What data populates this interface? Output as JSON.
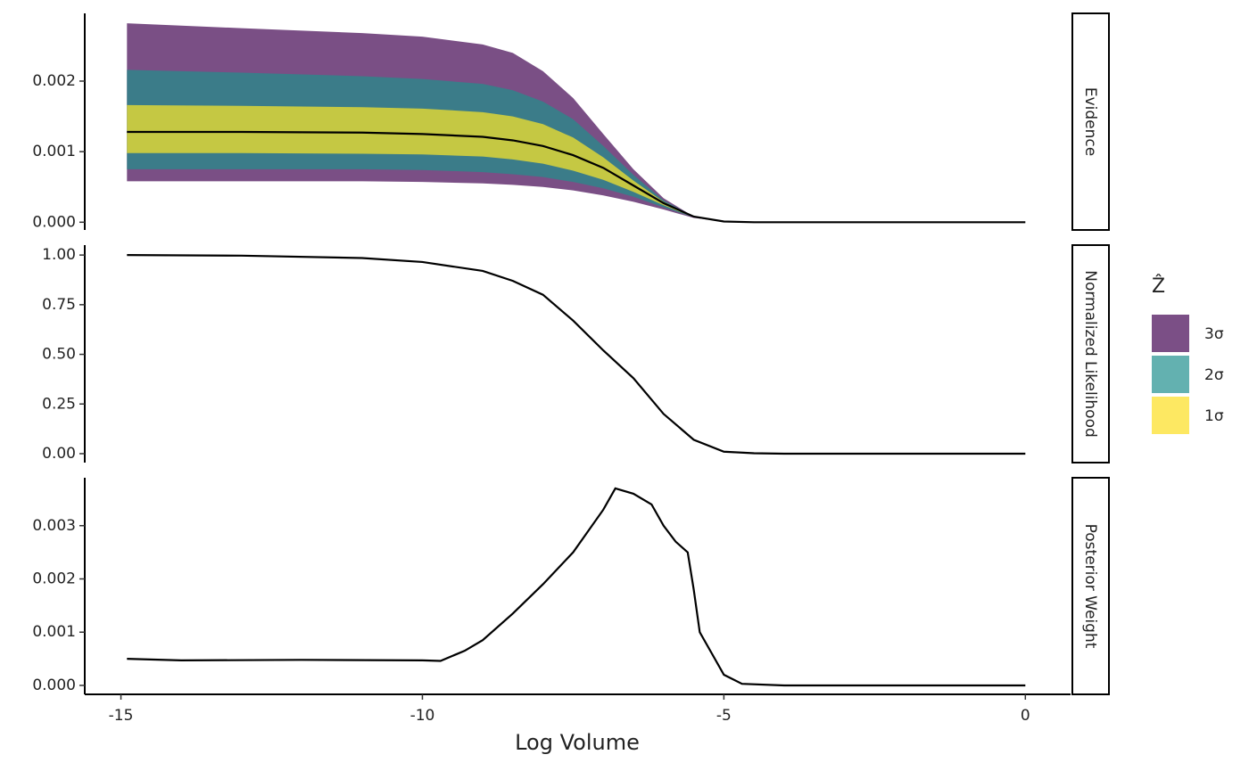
{
  "chart_data": [
    {
      "type": "band",
      "facet": "Evidence",
      "x": [
        -14.9,
        -13,
        -11,
        -10,
        -9,
        -8.5,
        -8,
        -7.5,
        -7,
        -6.5,
        -6,
        -5.5,
        -5,
        -4.5,
        -4,
        -2,
        0
      ],
      "xlim": [
        -15.6,
        0.75
      ],
      "ylim": [
        -0.00011,
        0.00296
      ],
      "yticks": [
        {
          "value": 0,
          "label": "0.000"
        },
        {
          "value": 0.001,
          "label": "0.001"
        },
        {
          "value": 0.002,
          "label": "0.002"
        }
      ],
      "legend_title": "Ẑ",
      "series": [
        {
          "name": "3σ",
          "color": "#7a4f85",
          "legend_color": "#7b4f86",
          "upper": [
            0.00282,
            0.00275,
            0.00268,
            0.00263,
            0.00252,
            0.0024,
            0.00214,
            0.00176,
            0.00125,
            0.00075,
            0.00034,
            8e-05,
            1e-05,
            0,
            0,
            0,
            0
          ],
          "lower": [
            0.00058,
            0.00058,
            0.00058,
            0.00057,
            0.00055,
            0.00053,
            0.0005,
            0.00045,
            0.00038,
            0.00029,
            0.00018,
            6e-05,
            1e-05,
            0,
            0,
            0,
            0
          ]
        },
        {
          "name": "2σ",
          "color": "#3b7c89",
          "legend_color": "#63b1b0",
          "upper": [
            0.00216,
            0.00212,
            0.00207,
            0.00203,
            0.00196,
            0.00187,
            0.00171,
            0.00146,
            0.00108,
            0.00067,
            0.00031,
            8e-05,
            1e-05,
            0,
            0,
            0,
            0
          ],
          "lower": [
            0.00075,
            0.00075,
            0.00075,
            0.00074,
            0.00071,
            0.00068,
            0.00064,
            0.00057,
            0.00048,
            0.00036,
            0.00021,
            7e-05,
            1e-05,
            0,
            0,
            0,
            0
          ]
        },
        {
          "name": "1σ",
          "color": "#c5c843",
          "legend_color": "#fde862",
          "upper": [
            0.00166,
            0.00165,
            0.00163,
            0.00161,
            0.00156,
            0.0015,
            0.00139,
            0.0012,
            0.00092,
            0.00059,
            0.00029,
            8e-05,
            1e-05,
            0,
            0,
            0,
            0
          ],
          "lower": [
            0.00098,
            0.00098,
            0.00097,
            0.00096,
            0.00093,
            0.00089,
            0.00083,
            0.00073,
            0.0006,
            0.00043,
            0.00024,
            7e-05,
            1e-05,
            0,
            0,
            0,
            0
          ]
        }
      ],
      "line": {
        "color": "#000000",
        "values": [
          0.00128,
          0.00128,
          0.00127,
          0.00125,
          0.00121,
          0.00116,
          0.00108,
          0.00095,
          0.00077,
          0.00052,
          0.00027,
          8e-05,
          1e-05,
          0,
          0,
          0,
          0
        ]
      }
    },
    {
      "type": "line",
      "facet": "Normalized Likelihood",
      "x": [
        -14.9,
        -13,
        -11,
        -10,
        -9,
        -8.5,
        -8,
        -7.5,
        -7,
        -6.5,
        -6,
        -5.5,
        -5,
        -4.5,
        -4,
        -2,
        0
      ],
      "xlim": [
        -15.6,
        0.75
      ],
      "ylim": [
        -0.045,
        1.05
      ],
      "yticks": [
        {
          "value": 0,
          "label": "0.00"
        },
        {
          "value": 0.25,
          "label": "0.25"
        },
        {
          "value": 0.5,
          "label": "0.50"
        },
        {
          "value": 0.75,
          "label": "0.75"
        },
        {
          "value": 1,
          "label": "1.00"
        }
      ],
      "line": {
        "color": "#000000",
        "values": [
          1.0,
          0.997,
          0.985,
          0.965,
          0.92,
          0.87,
          0.8,
          0.67,
          0.52,
          0.38,
          0.2,
          0.07,
          0.01,
          0.002,
          0,
          0,
          0
        ]
      }
    },
    {
      "type": "line",
      "facet": "Posterior Weight",
      "xlabel": "Log Volume",
      "x": [
        -14.9,
        -14,
        -12,
        -10,
        -9.7,
        -9.3,
        -9,
        -8.5,
        -8,
        -7.5,
        -7,
        -6.8,
        -6.5,
        -6.2,
        -6,
        -5.8,
        -5.6,
        -5.5,
        -5.4,
        -5.2,
        -5,
        -4.7,
        -4,
        -2,
        0
      ],
      "xlim": [
        -15.6,
        0.75
      ],
      "xticks": [
        -15,
        -10,
        -5,
        0
      ],
      "ylim": [
        -0.000168,
        0.0039
      ],
      "yticks": [
        {
          "value": 0,
          "label": "0.000"
        },
        {
          "value": 0.001,
          "label": "0.001"
        },
        {
          "value": 0.002,
          "label": "0.002"
        },
        {
          "value": 0.003,
          "label": "0.003"
        }
      ],
      "line": {
        "color": "#000000",
        "values": [
          0.0005,
          0.00047,
          0.00048,
          0.00047,
          0.00046,
          0.00065,
          0.00085,
          0.00135,
          0.0019,
          0.0025,
          0.0033,
          0.0037,
          0.0036,
          0.0034,
          0.003,
          0.0027,
          0.0025,
          0.0018,
          0.001,
          0.0006,
          0.0002,
          3e-05,
          0,
          0,
          0
        ]
      }
    }
  ]
}
